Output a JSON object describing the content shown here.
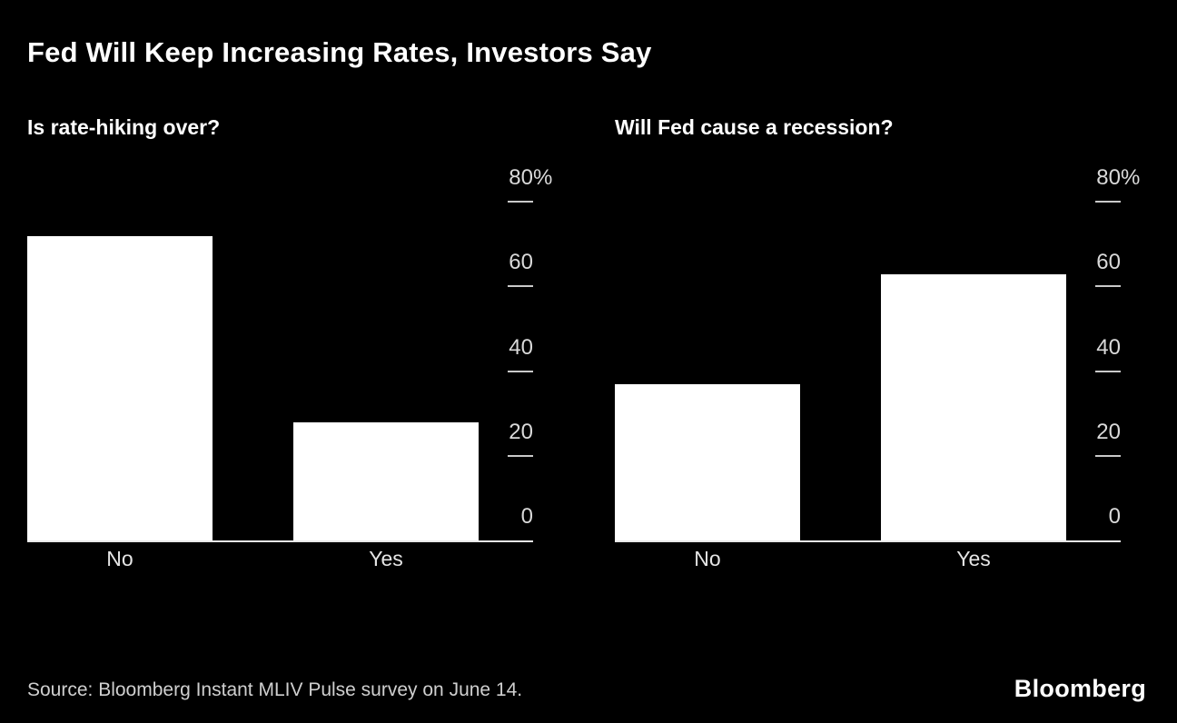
{
  "title": "Fed Will Keep Increasing Rates, Investors Say",
  "footer": {
    "source": "Source: Bloomberg Instant MLIV Pulse survey on June 14.",
    "logo": "Bloomberg"
  },
  "colors": {
    "background": "#000000",
    "bar": "#ffffff",
    "title_text": "#ffffff",
    "axis_label": "#d9d9d9",
    "tick": "#c9c9c9",
    "baseline": "#e8e8e8",
    "category_label": "#e5e5e5",
    "source_text": "#cfcfcf",
    "logo_text": "#ffffff"
  },
  "chart_data": [
    {
      "type": "bar",
      "title": "Is rate-hiking over?",
      "categories": [
        "No",
        "Yes"
      ],
      "values": [
        72,
        28
      ],
      "value_unit": "%",
      "ylim": [
        0,
        80
      ],
      "yticks": [
        {
          "value": 80,
          "label": "80",
          "suffix": "%"
        },
        {
          "value": 60,
          "label": "60",
          "suffix": ""
        },
        {
          "value": 40,
          "label": "40",
          "suffix": ""
        },
        {
          "value": 20,
          "label": "20",
          "suffix": ""
        },
        {
          "value": 0,
          "label": "0",
          "suffix": ""
        }
      ],
      "axis_position": "right",
      "grid": false,
      "bar_color": "#ffffff"
    },
    {
      "type": "bar",
      "title": "Will Fed cause a recession?",
      "categories": [
        "No",
        "Yes"
      ],
      "values": [
        37,
        63
      ],
      "value_unit": "%",
      "ylim": [
        0,
        80
      ],
      "yticks": [
        {
          "value": 80,
          "label": "80",
          "suffix": "%"
        },
        {
          "value": 60,
          "label": "60",
          "suffix": ""
        },
        {
          "value": 40,
          "label": "40",
          "suffix": ""
        },
        {
          "value": 20,
          "label": "20",
          "suffix": ""
        },
        {
          "value": 0,
          "label": "0",
          "suffix": ""
        }
      ],
      "axis_position": "right",
      "grid": false,
      "bar_color": "#ffffff"
    }
  ]
}
